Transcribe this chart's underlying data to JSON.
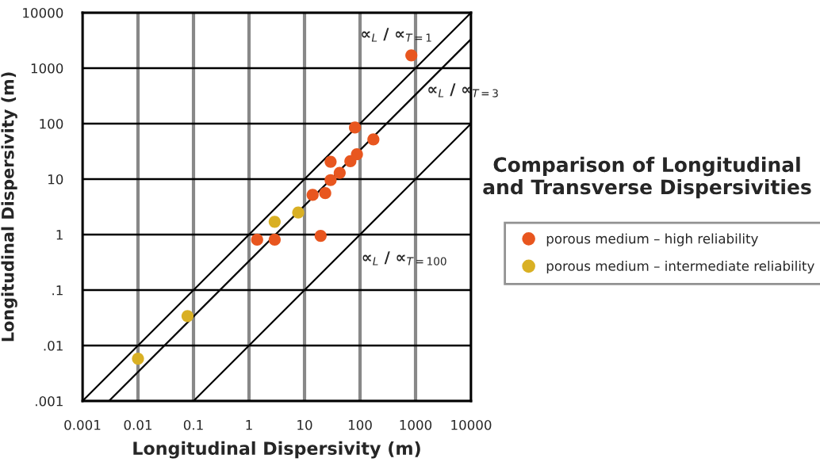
{
  "chart_data": {
    "type": "scatter",
    "title": "Comparison of Longitudinal and Transverse Dispersivities",
    "xlabel": "Longitudinal Dispersivity (m)",
    "ylabel": "Longitudinal Dispersivity (m)",
    "log": "xy",
    "xlim": [
      0.001,
      10000
    ],
    "ylim": [
      0.001,
      10000
    ],
    "xticks": [
      0.001,
      0.01,
      0.1,
      1,
      10,
      100,
      1000,
      10000
    ],
    "yticks": [
      {
        "value": 0.001,
        "label": ".001"
      },
      {
        "value": 0.01,
        "label": ".01"
      },
      {
        "value": 0.1,
        "label": ".1"
      },
      1,
      10,
      100,
      1000,
      10000
    ],
    "grid": true,
    "legend": "right",
    "series": [
      {
        "name": "porous medium – high reliability",
        "color": "#e8561f",
        "marker": "circle",
        "x": [
          840,
          81,
          174,
          29.5,
          67,
          88,
          43,
          29.5,
          14,
          23.6,
          1.4,
          2.9,
          19.5
        ],
        "values": [
          1700,
          85,
          52,
          20.6,
          21,
          28,
          13,
          9.6,
          5.2,
          5.6,
          0.81,
          0.81,
          0.95
        ]
      },
      {
        "name": "porous medium – intermediate reliability",
        "color": "#d9b024",
        "marker": "circle",
        "x": [
          2.9,
          7.7,
          0.078,
          0.01
        ],
        "values": [
          1.7,
          2.5,
          0.034,
          0.0058
        ]
      },
      {
        "type": "line",
        "color": "#000000",
        "x": [
          0.001,
          10000
        ],
        "values": [
          0.001,
          10000
        ]
      },
      {
        "type": "line",
        "color": "#000000",
        "x": [
          0.003,
          10000
        ],
        "values": [
          0.001,
          3333
        ]
      },
      {
        "type": "line",
        "color": "#000000",
        "x": [
          0.1,
          10000
        ],
        "values": [
          0.001,
          100
        ]
      }
    ],
    "annotations": [
      "∝$_{L}$ / ∝$_{T=1}$",
      "∝$_{L}$ / ∝$_{T=3}$",
      "∝$_{L}$ / ∝$_{T=100}$"
    ]
  }
}
